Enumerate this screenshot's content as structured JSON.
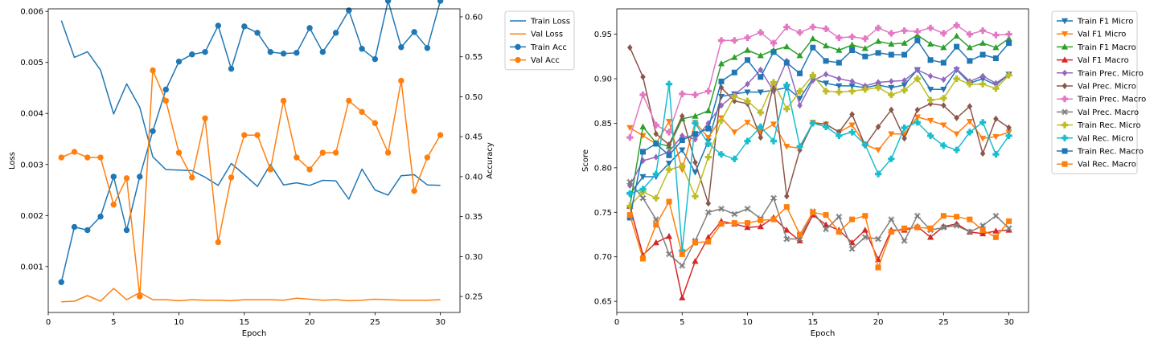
{
  "chart_data": [
    {
      "type": "line",
      "xlabel": "Epoch",
      "ylabel": "Loss",
      "y2label": "Accuracy",
      "xlim": [
        0,
        31.5
      ],
      "xticks": [
        0,
        5,
        10,
        15,
        20,
        25,
        30
      ],
      "ylim": [
        0.0001,
        0.00605
      ],
      "yticks": [
        0.001,
        0.002,
        0.003,
        0.004,
        0.005,
        0.006
      ],
      "ytick_labels": [
        "0.001",
        "0.002",
        "0.003",
        "0.004",
        "0.005",
        "0.006"
      ],
      "y2lim": [
        0.23,
        0.61
      ],
      "y2ticks": [
        0.25,
        0.3,
        0.35,
        0.4,
        0.45,
        0.5,
        0.55,
        0.6
      ],
      "y2tick_labels": [
        "0.25",
        "0.30",
        "0.35",
        "0.40",
        "0.45",
        "0.50",
        "0.55",
        "0.60"
      ],
      "grid": false,
      "legend_position": "outside-top-right",
      "x": [
        1,
        2,
        3,
        4,
        5,
        6,
        7,
        8,
        9,
        10,
        11,
        12,
        13,
        14,
        15,
        16,
        17,
        18,
        19,
        20,
        21,
        22,
        23,
        24,
        25,
        26,
        27,
        28,
        29,
        30
      ],
      "series": [
        {
          "name": "Train Loss",
          "axis": "left",
          "color": "#1f77b4",
          "marker": "none",
          "values": [
            0.00582,
            0.0051,
            0.00521,
            0.00485,
            0.00399,
            0.00458,
            0.00412,
            0.00315,
            0.0029,
            0.00289,
            0.00288,
            0.00275,
            0.00259,
            0.00302,
            0.0028,
            0.00257,
            0.003,
            0.0026,
            0.00264,
            0.00259,
            0.00269,
            0.00268,
            0.00232,
            0.00291,
            0.0025,
            0.0024,
            0.00278,
            0.0028,
            0.0026,
            0.00259
          ]
        },
        {
          "name": "Val Loss",
          "axis": "left",
          "color": "#ff7f0e",
          "marker": "none",
          "values": [
            0.00031,
            0.00032,
            0.00043,
            0.00032,
            0.00057,
            0.00035,
            0.00049,
            0.00035,
            0.00035,
            0.00033,
            0.00035,
            0.00034,
            0.00034,
            0.00033,
            0.00035,
            0.00035,
            0.00035,
            0.00034,
            0.00038,
            0.00036,
            0.00034,
            0.00035,
            0.00033,
            0.00034,
            0.00036,
            0.00035,
            0.00034,
            0.00034,
            0.00034,
            0.00035
          ]
        },
        {
          "name": "Train Acc",
          "axis": "right",
          "color": "#1f77b4",
          "marker": "o",
          "values": [
            0.268,
            0.337,
            0.333,
            0.35,
            0.4,
            0.333,
            0.4,
            0.457,
            0.509,
            0.544,
            0.553,
            0.556,
            0.589,
            0.535,
            0.588,
            0.58,
            0.556,
            0.554,
            0.555,
            0.586,
            0.556,
            0.58,
            0.608,
            0.56,
            0.547,
            0.62,
            0.562,
            0.581,
            0.561,
            0.62
          ]
        },
        {
          "name": "Val Acc",
          "axis": "right",
          "color": "#ff7f0e",
          "marker": "o",
          "values": [
            0.424,
            0.431,
            0.424,
            0.424,
            0.365,
            0.398,
            0.25,
            0.533,
            0.495,
            0.43,
            0.399,
            0.473,
            0.318,
            0.399,
            0.452,
            0.452,
            0.409,
            0.495,
            0.424,
            0.409,
            0.43,
            0.43,
            0.495,
            0.481,
            0.467,
            0.43,
            0.52,
            0.382,
            0.424,
            0.452
          ]
        }
      ]
    },
    {
      "type": "line",
      "xlabel": "Epoch",
      "ylabel": "Score",
      "xlim": [
        0,
        31.5
      ],
      "xticks": [
        0,
        5,
        10,
        15,
        20,
        25,
        30
      ],
      "ylim": [
        0.6375,
        0.9785
      ],
      "yticks": [
        0.65,
        0.7,
        0.75,
        0.8,
        0.85,
        0.9,
        0.95
      ],
      "ytick_labels": [
        "0.65",
        "0.70",
        "0.75",
        "0.80",
        "0.85",
        "0.90",
        "0.95"
      ],
      "grid": false,
      "legend_position": "outside-top-right",
      "x": [
        1,
        2,
        3,
        4,
        5,
        6,
        7,
        8,
        9,
        10,
        11,
        12,
        13,
        14,
        15,
        16,
        17,
        18,
        19,
        20,
        21,
        22,
        23,
        24,
        25,
        26,
        27,
        28,
        29,
        30
      ],
      "series": [
        {
          "name": "Train F1 Micro",
          "color": "#1f77b4",
          "marker": "v",
          "values": [
            0.77,
            0.79,
            0.79,
            0.805,
            0.82,
            0.795,
            0.83,
            0.88,
            0.883,
            0.885,
            0.885,
            0.887,
            0.89,
            0.878,
            0.9,
            0.895,
            0.892,
            0.892,
            0.89,
            0.893,
            0.89,
            0.893,
            0.91,
            0.888,
            0.888,
            0.91,
            0.895,
            0.9,
            0.893,
            0.905
          ]
        },
        {
          "name": "Val F1 Micro",
          "color": "#ff7f0e",
          "marker": "v",
          "values": [
            0.845,
            0.836,
            0.827,
            0.852,
            0.798,
            0.851,
            0.834,
            0.856,
            0.84,
            0.851,
            0.84,
            0.849,
            0.824,
            0.822,
            0.851,
            0.849,
            0.84,
            0.848,
            0.826,
            0.82,
            0.838,
            0.838,
            0.857,
            0.853,
            0.848,
            0.838,
            0.852,
            0.833,
            0.835,
            0.84
          ]
        },
        {
          "name": "Train F1 Macro",
          "color": "#2ca02c",
          "marker": "^",
          "values": [
            0.757,
            0.846,
            0.828,
            0.824,
            0.855,
            0.858,
            0.864,
            0.917,
            0.924,
            0.932,
            0.926,
            0.932,
            0.936,
            0.926,
            0.945,
            0.937,
            0.932,
            0.938,
            0.934,
            0.942,
            0.939,
            0.94,
            0.949,
            0.939,
            0.935,
            0.948,
            0.935,
            0.94,
            0.935,
            0.945
          ]
        },
        {
          "name": "Val F1 Macro",
          "color": "#d62728",
          "marker": "^",
          "values": [
            0.757,
            0.702,
            0.716,
            0.723,
            0.654,
            0.695,
            0.722,
            0.74,
            0.737,
            0.733,
            0.734,
            0.744,
            0.73,
            0.718,
            0.747,
            0.736,
            0.73,
            0.716,
            0.73,
            0.697,
            0.73,
            0.73,
            0.734,
            0.722,
            0.734,
            0.737,
            0.728,
            0.726,
            0.729,
            0.73
          ]
        },
        {
          "name": "Train Prec. Micro",
          "color": "#9467bd",
          "marker": "D",
          "values": [
            0.78,
            0.808,
            0.812,
            0.818,
            0.836,
            0.832,
            0.85,
            0.87,
            0.882,
            0.894,
            0.91,
            0.886,
            0.92,
            0.87,
            0.898,
            0.905,
            0.9,
            0.897,
            0.892,
            0.896,
            0.897,
            0.898,
            0.91,
            0.903,
            0.899,
            0.911,
            0.897,
            0.903,
            0.895,
            0.905
          ]
        },
        {
          "name": "Val Prec. Micro",
          "color": "#8c564b",
          "marker": "D",
          "values": [
            0.935,
            0.902,
            0.838,
            0.826,
            0.858,
            0.806,
            0.76,
            0.89,
            0.875,
            0.872,
            0.834,
            0.893,
            0.768,
            0.82,
            0.85,
            0.849,
            0.84,
            0.86,
            0.825,
            0.846,
            0.865,
            0.833,
            0.865,
            0.872,
            0.87,
            0.856,
            0.869,
            0.816,
            0.855,
            0.845
          ]
        },
        {
          "name": "Train Prec. Macro",
          "color": "#e377c2",
          "marker": "P",
          "values": [
            0.834,
            0.882,
            0.848,
            0.84,
            0.883,
            0.882,
            0.886,
            0.943,
            0.943,
            0.946,
            0.952,
            0.94,
            0.958,
            0.952,
            0.958,
            0.956,
            0.946,
            0.947,
            0.945,
            0.957,
            0.951,
            0.954,
            0.953,
            0.957,
            0.951,
            0.96,
            0.95,
            0.954,
            0.949,
            0.95
          ]
        },
        {
          "name": "Val Prec. Macro",
          "color": "#7f7f7f",
          "marker": "X",
          "values": [
            0.784,
            0.766,
            0.742,
            0.703,
            0.69,
            0.718,
            0.75,
            0.754,
            0.748,
            0.754,
            0.743,
            0.766,
            0.72,
            0.72,
            0.751,
            0.731,
            0.745,
            0.709,
            0.722,
            0.72,
            0.742,
            0.718,
            0.746,
            0.73,
            0.733,
            0.735,
            0.728,
            0.735,
            0.746,
            0.732
          ]
        },
        {
          "name": "Train Rec. Micro",
          "color": "#bcbd22",
          "marker": "P",
          "values": [
            0.757,
            0.773,
            0.766,
            0.798,
            0.802,
            0.768,
            0.812,
            0.853,
            0.88,
            0.875,
            0.862,
            0.896,
            0.866,
            0.886,
            0.904,
            0.886,
            0.885,
            0.886,
            0.888,
            0.89,
            0.882,
            0.887,
            0.9,
            0.876,
            0.878,
            0.9,
            0.894,
            0.894,
            0.889,
            0.904
          ]
        },
        {
          "name": "Val Rec. Micro",
          "color": "#17becf",
          "marker": "P",
          "values": [
            0.771,
            0.776,
            0.793,
            0.894,
            0.707,
            0.85,
            0.827,
            0.815,
            0.81,
            0.83,
            0.846,
            0.83,
            0.893,
            0.824,
            0.85,
            0.846,
            0.836,
            0.84,
            0.826,
            0.793,
            0.81,
            0.845,
            0.851,
            0.836,
            0.825,
            0.82,
            0.84,
            0.851,
            0.815,
            0.836
          ]
        },
        {
          "name": "Train Rec. Macro",
          "color": "#1f77b4",
          "marker": "s",
          "values": [
            0.744,
            0.818,
            0.827,
            0.814,
            0.831,
            0.838,
            0.844,
            0.897,
            0.907,
            0.921,
            0.902,
            0.93,
            0.918,
            0.906,
            0.935,
            0.92,
            0.918,
            0.932,
            0.925,
            0.929,
            0.927,
            0.927,
            0.943,
            0.921,
            0.918,
            0.936,
            0.92,
            0.927,
            0.923,
            0.94
          ]
        },
        {
          "name": "Val Rec. Macro",
          "color": "#ff7f0e",
          "marker": "s",
          "values": [
            0.747,
            0.698,
            0.736,
            0.762,
            0.703,
            0.716,
            0.717,
            0.737,
            0.738,
            0.738,
            0.741,
            0.742,
            0.756,
            0.725,
            0.75,
            0.747,
            0.728,
            0.742,
            0.746,
            0.688,
            0.728,
            0.732,
            0.733,
            0.732,
            0.746,
            0.745,
            0.742,
            0.73,
            0.722,
            0.74
          ]
        }
      ]
    }
  ]
}
